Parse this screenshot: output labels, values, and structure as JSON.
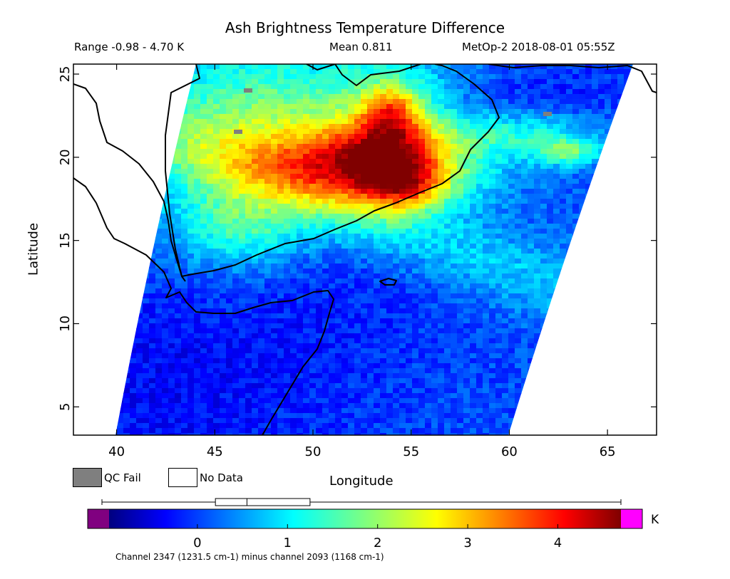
{
  "header": {
    "title": "Ash Brightness Temperature Difference",
    "range": "Range -0.98 - 4.70 K",
    "mean": "Mean 0.811",
    "satellite_time": "MetOp-2 2018-08-01 05:55Z"
  },
  "axes": {
    "ylabel": "Latitude",
    "xlabel": "Longitude",
    "x_range": [
      37.8,
      67.5
    ],
    "y_range": [
      3.3,
      25.6
    ],
    "x_ticks": [
      40,
      45,
      50,
      55,
      60,
      65
    ],
    "y_ticks": [
      5,
      10,
      15,
      20,
      25
    ]
  },
  "legend": {
    "qc_fail": "QC Fail",
    "no_data": "No Data",
    "qc_fail_color": "#7f7f7f",
    "no_data_color": "#ffffff"
  },
  "colorbar": {
    "unit": "K",
    "min": -0.98,
    "max": 4.7,
    "ticks": [
      0,
      1,
      2,
      3,
      4
    ],
    "underflow_color": "#800080",
    "overflow_color": "#ff00ff",
    "boxplot": {
      "min": -0.98,
      "q1": 0.2,
      "median": 0.55,
      "q3": 1.25,
      "max": 4.7
    }
  },
  "footnote": "Channel 2347 (1231.5 cm-1) minus channel 2093 (1168 cm-1)",
  "colors": {
    "map_background": "#ffffff",
    "coastline": "#000000"
  }
}
